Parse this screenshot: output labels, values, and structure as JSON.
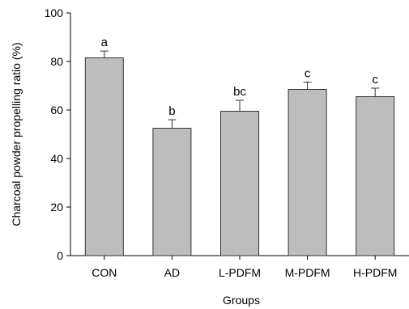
{
  "chart_data": {
    "type": "bar",
    "title": "",
    "xlabel": "Groups",
    "ylabel": "Charcoal powder propelling ratio  (%)",
    "ylim": [
      0,
      100
    ],
    "yticks": [
      0,
      20,
      40,
      60,
      80,
      100
    ],
    "categories": [
      "CON",
      "AD",
      "L-PDFM",
      "M-PDFM",
      "H-PDFM"
    ],
    "values": [
      81.5,
      52.5,
      59.5,
      68.5,
      65.5
    ],
    "errors": [
      2.8,
      3.5,
      4.5,
      3.0,
      3.5
    ],
    "significance": [
      "a",
      "b",
      "bc",
      "c",
      "c"
    ],
    "bar_color": "#bdbdbd",
    "grid": false,
    "legend": "none"
  }
}
